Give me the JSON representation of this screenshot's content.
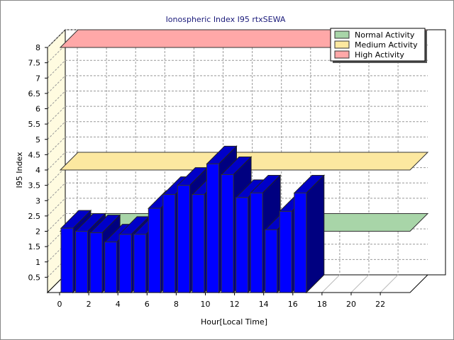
{
  "chart_data": {
    "type": "bar",
    "title": "Ionospheric Index I95 rtxSEWA",
    "xlabel": "Hour[Local Time]",
    "ylabel": "I95 Index",
    "x": [
      0,
      1,
      2,
      3,
      4,
      5,
      6,
      7,
      8,
      9,
      10,
      11,
      12,
      13,
      14,
      15,
      16
    ],
    "values": [
      2.1,
      2.0,
      1.95,
      1.65,
      1.9,
      1.9,
      2.75,
      3.2,
      3.5,
      3.2,
      4.2,
      3.85,
      3.1,
      3.25,
      2.05,
      2.65,
      3.25
    ],
    "xlim": [
      0,
      24
    ],
    "ylim": [
      0,
      8
    ],
    "x_ticks": [
      "0",
      "2",
      "4",
      "6",
      "8",
      "10",
      "12",
      "14",
      "16",
      "18",
      "20",
      "22"
    ],
    "y_ticks": [
      "0.5",
      "1",
      "1.5",
      "2",
      "2.5",
      "3",
      "3.5",
      "4",
      "4.5",
      "5",
      "5.5",
      "6",
      "6.5",
      "7",
      "7.5",
      "8"
    ],
    "grid": true,
    "bar_color": "#0000ff",
    "threshold_bands": [
      {
        "name": "Normal Activity",
        "value": 2.0,
        "color": "#a8d5a8"
      },
      {
        "name": "Medium Activity",
        "value": 4.0,
        "color": "#fce8a0"
      },
      {
        "name": "High Activity",
        "value": 8.0,
        "color": "#ffa8a8"
      }
    ],
    "legend_position": "top-right"
  }
}
